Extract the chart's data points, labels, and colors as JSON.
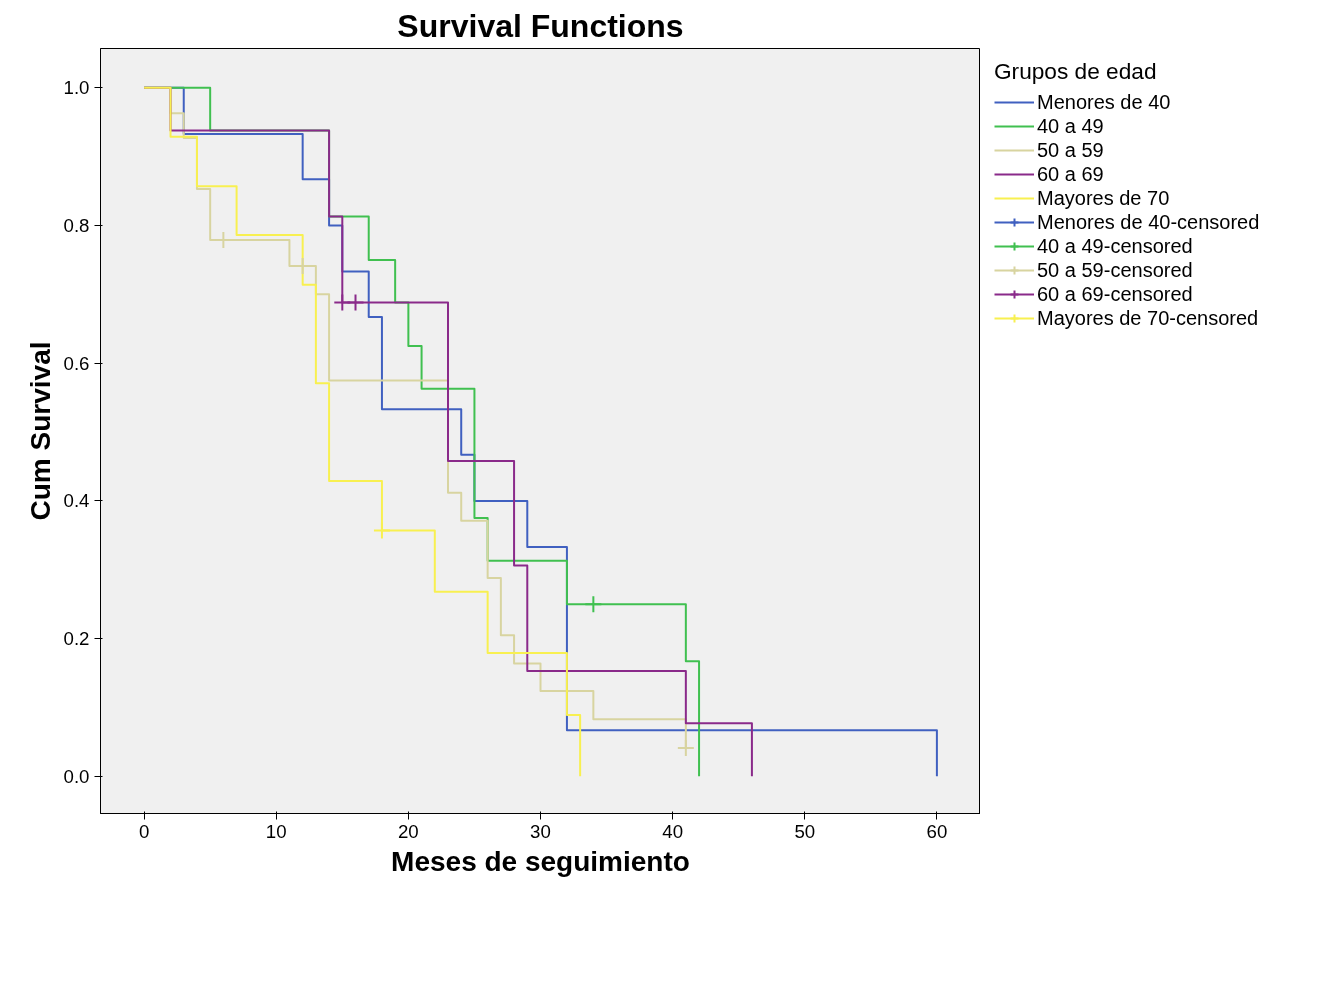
{
  "chart_data": {
    "type": "step",
    "title": "Survival Functions",
    "xlabel": "Meses de seguimiento",
    "ylabel": "Cum Survival",
    "legend_title": "Grupos de edad",
    "xlim": [
      -3.3,
      63.3
    ],
    "ylim": [
      -0.054,
      1.057
    ],
    "xticks": [
      0,
      10,
      20,
      30,
      40,
      50,
      60
    ],
    "yticks": [
      {
        "value": 0,
        "label": "0.0"
      },
      {
        "value": 0.2,
        "label": "0.2"
      },
      {
        "value": 0.4,
        "label": "0.4"
      },
      {
        "value": 0.6,
        "label": "0.6"
      },
      {
        "value": 0.8,
        "label": "0.8"
      },
      {
        "value": 1,
        "label": "1.0"
      }
    ],
    "grid": false,
    "legend": "right",
    "line_style": "solid",
    "series": [
      {
        "name": "Menores de 40",
        "color": "#4060c0",
        "x": [
          0,
          3,
          12,
          14,
          15,
          17,
          18,
          24,
          25,
          29,
          32,
          60
        ],
        "values": [
          1,
          0.933,
          0.867,
          0.8,
          0.733,
          0.667,
          0.533,
          0.467,
          0.4,
          0.333,
          0.067,
          0
        ]
      },
      {
        "name": "40 a 49",
        "color": "#40c050",
        "x": [
          0,
          5,
          14,
          17,
          19,
          20,
          21,
          25,
          26,
          32,
          41,
          42
        ],
        "values": [
          1,
          0.938,
          0.813,
          0.75,
          0.688,
          0.625,
          0.563,
          0.375,
          0.313,
          0.25,
          0.167,
          0
        ]
      },
      {
        "name": "50 a 59",
        "color": "#d8d4a0",
        "x": [
          0,
          2,
          3,
          4,
          5,
          11,
          13,
          14,
          23,
          24,
          26,
          27,
          28,
          30,
          34,
          41
        ],
        "values": [
          1,
          0.963,
          0.927,
          0.853,
          0.779,
          0.741,
          0.7,
          0.575,
          0.412,
          0.371,
          0.288,
          0.205,
          0.164,
          0.124,
          0.083,
          0.041
        ]
      },
      {
        "name": "60 a 69",
        "color": "#8a2a8a",
        "x": [
          0,
          2,
          14,
          15,
          23,
          28,
          29,
          41,
          46
        ],
        "values": [
          1,
          0.938,
          0.813,
          0.688,
          0.458,
          0.306,
          0.153,
          0.077,
          0
        ]
      },
      {
        "name": "Mayores de 70",
        "color": "#f8f050",
        "x": [
          0,
          2,
          4,
          7,
          12,
          13,
          14,
          18,
          22,
          26,
          32,
          33
        ],
        "values": [
          1,
          0.929,
          0.857,
          0.786,
          0.714,
          0.571,
          0.429,
          0.357,
          0.268,
          0.179,
          0.089,
          0
        ]
      },
      {
        "name": "Menores de 40-censored",
        "color": "#4060c0",
        "type": "scatter",
        "marker": "cross"
      },
      {
        "name": "40 a 49-censored",
        "color": "#40c050",
        "type": "scatter",
        "marker": "cross",
        "x": [
          34
        ],
        "values": [
          0.25
        ]
      },
      {
        "name": "50 a 59-censored",
        "color": "#d8d4a0",
        "type": "scatter",
        "marker": "cross",
        "x": [
          6,
          12,
          41
        ],
        "values": [
          0.779,
          0.741,
          0.041
        ]
      },
      {
        "name": "60 a 69-censored",
        "color": "#8a2a8a",
        "type": "scatter",
        "marker": "cross",
        "x": [
          15,
          16
        ],
        "values": [
          0.688,
          0.688
        ]
      },
      {
        "name": "Mayores de 70-censored",
        "color": "#f8f050",
        "type": "scatter",
        "marker": "cross",
        "x": [
          18
        ],
        "values": [
          0.357
        ]
      }
    ]
  }
}
